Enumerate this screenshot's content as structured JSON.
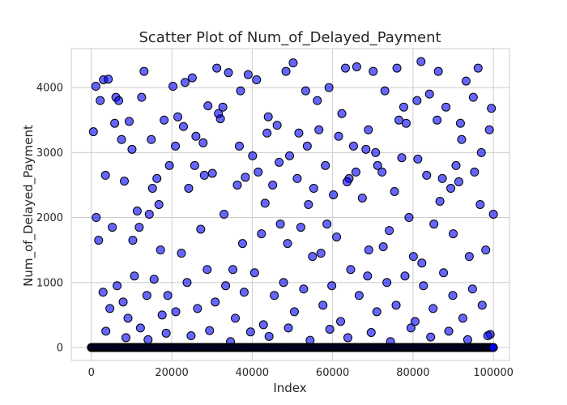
{
  "chart_data": {
    "type": "scatter",
    "title": "Scatter Plot of Num_of_Delayed_Payment",
    "xlabel": "Index",
    "ylabel": "Num_of_Delayed_Payment",
    "xlim": [
      -5000,
      104000
    ],
    "ylim": [
      -200,
      4600
    ],
    "x_ticks": [
      0,
      20000,
      40000,
      60000,
      80000,
      100000
    ],
    "x_tick_labels": [
      "0",
      "20000",
      "40000",
      "60000",
      "80000",
      "100000"
    ],
    "y_ticks": [
      0,
      1000,
      2000,
      3000,
      4000
    ],
    "y_tick_labels": [
      "0",
      "1000",
      "2000",
      "3000",
      "4000"
    ],
    "grid": true,
    "legend": "none",
    "marker_color": "#0000ff",
    "marker_edge_color": "#000000",
    "marker_alpha": 0.6,
    "dense_band": {
      "y": 0,
      "x_from": 0,
      "x_to": 100000,
      "note_points_per_band": 400
    },
    "points": [
      [
        500,
        3320
      ],
      [
        1200,
        2000
      ],
      [
        2200,
        3800
      ],
      [
        3000,
        4120
      ],
      [
        3500,
        2650
      ],
      [
        4200,
        4130
      ],
      [
        5200,
        1850
      ],
      [
        6100,
        3850
      ],
      [
        6800,
        3800
      ],
      [
        7500,
        3200
      ],
      [
        8200,
        2560
      ],
      [
        9400,
        3480
      ],
      [
        10300,
        1650
      ],
      [
        11400,
        2100
      ],
      [
        12500,
        3850
      ],
      [
        13100,
        4250
      ],
      [
        14400,
        2050
      ],
      [
        15200,
        2450
      ],
      [
        16300,
        2600
      ],
      [
        17200,
        1500
      ],
      [
        18100,
        3500
      ],
      [
        19400,
        2800
      ],
      [
        20300,
        4020
      ],
      [
        21500,
        3550
      ],
      [
        22400,
        1450
      ],
      [
        23300,
        4080
      ],
      [
        24200,
        2450
      ],
      [
        25100,
        4150
      ],
      [
        26000,
        3250
      ],
      [
        27200,
        1820
      ],
      [
        28100,
        2650
      ],
      [
        29000,
        3720
      ],
      [
        30100,
        2680
      ],
      [
        31200,
        4300
      ],
      [
        32100,
        3520
      ],
      [
        33000,
        2050
      ],
      [
        34100,
        4230
      ],
      [
        35200,
        1200
      ],
      [
        36300,
        2500
      ],
      [
        37100,
        3950
      ],
      [
        38300,
        2620
      ],
      [
        39000,
        4200
      ],
      [
        40100,
        2950
      ],
      [
        41100,
        4120
      ],
      [
        42300,
        1750
      ],
      [
        43200,
        2220
      ],
      [
        44000,
        3550
      ],
      [
        45100,
        2500
      ],
      [
        46200,
        3420
      ],
      [
        47000,
        1900
      ],
      [
        48400,
        4250
      ],
      [
        49300,
        2950
      ],
      [
        50200,
        4380
      ],
      [
        51200,
        2600
      ],
      [
        52100,
        1850
      ],
      [
        53300,
        3950
      ],
      [
        54000,
        2200
      ],
      [
        55300,
        2450
      ],
      [
        56200,
        3800
      ],
      [
        57100,
        1450
      ],
      [
        58200,
        2800
      ],
      [
        59100,
        4000
      ],
      [
        60200,
        2350
      ],
      [
        61000,
        1700
      ],
      [
        62300,
        3600
      ],
      [
        63200,
        4300
      ],
      [
        64100,
        2600
      ],
      [
        65200,
        3100
      ],
      [
        66000,
        4320
      ],
      [
        67400,
        2300
      ],
      [
        68300,
        3050
      ],
      [
        69000,
        1500
      ],
      [
        70100,
        4250
      ],
      [
        71200,
        2800
      ],
      [
        72300,
        2700
      ],
      [
        73000,
        3950
      ],
      [
        74100,
        1800
      ],
      [
        75400,
        2400
      ],
      [
        76000,
        4300
      ],
      [
        77200,
        2920
      ],
      [
        78300,
        3450
      ],
      [
        79000,
        2000
      ],
      [
        80100,
        1400
      ],
      [
        81200,
        2900
      ],
      [
        82000,
        4400
      ],
      [
        83400,
        2650
      ],
      [
        84100,
        3900
      ],
      [
        85200,
        1900
      ],
      [
        86000,
        3500
      ],
      [
        87300,
        2600
      ],
      [
        88200,
        3700
      ],
      [
        89400,
        2450
      ],
      [
        90000,
        1750
      ],
      [
        91400,
        2550
      ],
      [
        92100,
        3200
      ],
      [
        93200,
        4100
      ],
      [
        94000,
        1400
      ],
      [
        95300,
        2700
      ],
      [
        96200,
        4300
      ],
      [
        97000,
        3000
      ],
      [
        98100,
        1500
      ],
      [
        99500,
        3680
      ],
      [
        100000,
        2050
      ],
      [
        1800,
        1650
      ],
      [
        2900,
        850
      ],
      [
        4600,
        600
      ],
      [
        6400,
        950
      ],
      [
        7900,
        700
      ],
      [
        9100,
        450
      ],
      [
        10700,
        1100
      ],
      [
        12200,
        300
      ],
      [
        13800,
        800
      ],
      [
        15600,
        1050
      ],
      [
        17600,
        500
      ],
      [
        19000,
        800
      ],
      [
        21000,
        550
      ],
      [
        23800,
        1000
      ],
      [
        26400,
        600
      ],
      [
        28800,
        1200
      ],
      [
        30800,
        700
      ],
      [
        33400,
        950
      ],
      [
        35800,
        450
      ],
      [
        38000,
        850
      ],
      [
        40600,
        1150
      ],
      [
        42800,
        350
      ],
      [
        45500,
        800
      ],
      [
        47800,
        1000
      ],
      [
        50500,
        550
      ],
      [
        52800,
        900
      ],
      [
        55000,
        1400
      ],
      [
        57600,
        650
      ],
      [
        59800,
        950
      ],
      [
        62000,
        400
      ],
      [
        64500,
        1200
      ],
      [
        66600,
        800
      ],
      [
        68700,
        1100
      ],
      [
        71000,
        550
      ],
      [
        73500,
        1000
      ],
      [
        75800,
        650
      ],
      [
        78000,
        1100
      ],
      [
        80500,
        400
      ],
      [
        82600,
        950
      ],
      [
        85000,
        600
      ],
      [
        87600,
        1150
      ],
      [
        89900,
        800
      ],
      [
        92400,
        450
      ],
      [
        94800,
        900
      ],
      [
        97200,
        650
      ],
      [
        99200,
        200
      ],
      [
        3600,
        250
      ],
      [
        8600,
        150
      ],
      [
        14100,
        120
      ],
      [
        18600,
        220
      ],
      [
        24800,
        180
      ],
      [
        29400,
        260
      ],
      [
        34600,
        90
      ],
      [
        39600,
        240
      ],
      [
        44200,
        170
      ],
      [
        49000,
        300
      ],
      [
        54400,
        110
      ],
      [
        59300,
        280
      ],
      [
        63800,
        150
      ],
      [
        69600,
        230
      ],
      [
        74400,
        90
      ],
      [
        79500,
        300
      ],
      [
        84400,
        160
      ],
      [
        88900,
        250
      ],
      [
        93600,
        120
      ],
      [
        98600,
        180
      ],
      [
        11900,
        1850
      ],
      [
        16800,
        2200
      ],
      [
        22900,
        3400
      ],
      [
        27800,
        3150
      ],
      [
        32700,
        3700
      ],
      [
        37600,
        1600
      ],
      [
        43700,
        3300
      ],
      [
        48800,
        1600
      ],
      [
        53700,
        3100
      ],
      [
        58600,
        1900
      ],
      [
        63600,
        2550
      ],
      [
        68900,
        3350
      ],
      [
        72600,
        1550
      ],
      [
        77700,
        3700
      ],
      [
        82200,
        1300
      ],
      [
        86700,
        2250
      ],
      [
        91800,
        3450
      ],
      [
        96700,
        2200
      ],
      [
        1100,
        4020
      ],
      [
        5800,
        3450
      ],
      [
        10100,
        3050
      ],
      [
        14900,
        3200
      ],
      [
        20900,
        3100
      ],
      [
        25700,
        2800
      ],
      [
        31600,
        3600
      ],
      [
        36800,
        3100
      ],
      [
        41500,
        2700
      ],
      [
        46700,
        2850
      ],
      [
        51600,
        3300
      ],
      [
        56600,
        3350
      ],
      [
        61500,
        3250
      ],
      [
        65800,
        2700
      ],
      [
        70700,
        3000
      ],
      [
        76500,
        3500
      ],
      [
        81000,
        3800
      ],
      [
        86300,
        4250
      ],
      [
        90700,
        2800
      ],
      [
        95000,
        3850
      ],
      [
        99000,
        3350
      ]
    ]
  }
}
